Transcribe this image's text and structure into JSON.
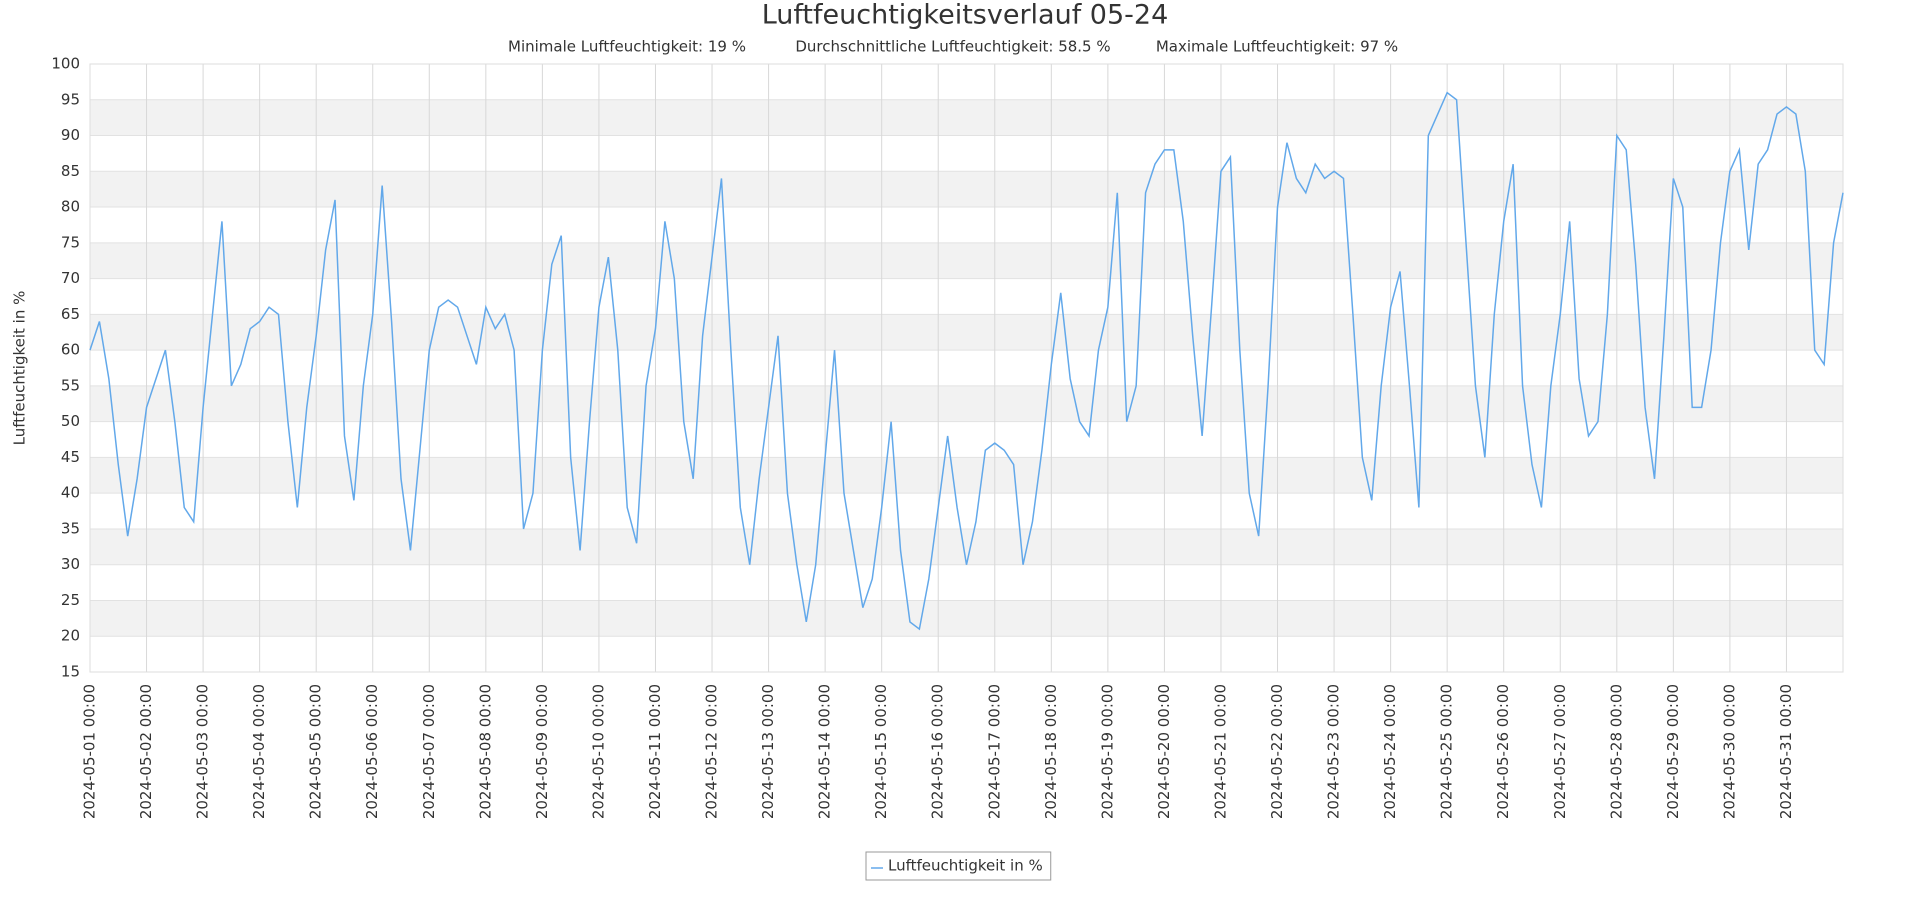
{
  "chart_data": {
    "type": "line",
    "title": "Luftfeuchtigkeitsverlauf 05-24",
    "annotations": [
      "Minimale Luftfeuchtigkeit: 19 %",
      "Durchschnittliche Luftfeuchtigkeit: 58.5 %",
      "Maximale Luftfeuchtigkeit: 97 %"
    ],
    "y_label": "Luftfeuchtigkeit in %",
    "x": [
      "2024-05-01 00:00",
      "2024-05-01 04:00",
      "2024-05-01 08:00",
      "2024-05-01 12:00",
      "2024-05-01 16:00",
      "2024-05-01 20:00",
      "2024-05-02 00:00",
      "2024-05-02 04:00",
      "2024-05-02 08:00",
      "2024-05-02 12:00",
      "2024-05-02 16:00",
      "2024-05-02 20:00",
      "2024-05-03 00:00",
      "2024-05-03 04:00",
      "2024-05-03 08:00",
      "2024-05-03 12:00",
      "2024-05-03 16:00",
      "2024-05-03 20:00",
      "2024-05-04 00:00",
      "2024-05-04 04:00",
      "2024-05-04 08:00",
      "2024-05-04 12:00",
      "2024-05-04 16:00",
      "2024-05-04 20:00",
      "2024-05-05 00:00",
      "2024-05-05 04:00",
      "2024-05-05 08:00",
      "2024-05-05 12:00",
      "2024-05-05 16:00",
      "2024-05-05 20:00",
      "2024-05-06 00:00",
      "2024-05-06 04:00",
      "2024-05-06 08:00",
      "2024-05-06 12:00",
      "2024-05-06 16:00",
      "2024-05-06 20:00",
      "2024-05-07 00:00",
      "2024-05-07 04:00",
      "2024-05-07 08:00",
      "2024-05-07 12:00",
      "2024-05-07 16:00",
      "2024-05-07 20:00",
      "2024-05-08 00:00",
      "2024-05-08 04:00",
      "2024-05-08 08:00",
      "2024-05-08 12:00",
      "2024-05-08 16:00",
      "2024-05-08 20:00",
      "2024-05-09 00:00",
      "2024-05-09 04:00",
      "2024-05-09 08:00",
      "2024-05-09 12:00",
      "2024-05-09 16:00",
      "2024-05-09 20:00",
      "2024-05-10 00:00",
      "2024-05-10 04:00",
      "2024-05-10 08:00",
      "2024-05-10 12:00",
      "2024-05-10 16:00",
      "2024-05-10 20:00",
      "2024-05-11 00:00",
      "2024-05-11 04:00",
      "2024-05-11 08:00",
      "2024-05-11 12:00",
      "2024-05-11 16:00",
      "2024-05-11 20:00",
      "2024-05-12 00:00",
      "2024-05-12 04:00",
      "2024-05-12 08:00",
      "2024-05-12 12:00",
      "2024-05-12 16:00",
      "2024-05-12 20:00",
      "2024-05-13 00:00",
      "2024-05-13 04:00",
      "2024-05-13 08:00",
      "2024-05-13 12:00",
      "2024-05-13 16:00",
      "2024-05-13 20:00",
      "2024-05-14 00:00",
      "2024-05-14 04:00",
      "2024-05-14 08:00",
      "2024-05-14 12:00",
      "2024-05-14 16:00",
      "2024-05-14 20:00",
      "2024-05-15 00:00",
      "2024-05-15 04:00",
      "2024-05-15 08:00",
      "2024-05-15 12:00",
      "2024-05-15 16:00",
      "2024-05-15 20:00",
      "2024-05-16 00:00",
      "2024-05-16 04:00",
      "2024-05-16 08:00",
      "2024-05-16 12:00",
      "2024-05-16 16:00",
      "2024-05-16 20:00",
      "2024-05-17 00:00",
      "2024-05-17 04:00",
      "2024-05-17 08:00",
      "2024-05-17 12:00",
      "2024-05-17 16:00",
      "2024-05-17 20:00",
      "2024-05-18 00:00",
      "2024-05-18 04:00",
      "2024-05-18 08:00",
      "2024-05-18 12:00",
      "2024-05-18 16:00",
      "2024-05-18 20:00",
      "2024-05-19 00:00",
      "2024-05-19 04:00",
      "2024-05-19 08:00",
      "2024-05-19 12:00",
      "2024-05-19 16:00",
      "2024-05-19 20:00",
      "2024-05-20 00:00",
      "2024-05-20 04:00",
      "2024-05-20 08:00",
      "2024-05-20 12:00",
      "2024-05-20 16:00",
      "2024-05-20 20:00",
      "2024-05-21 00:00",
      "2024-05-21 04:00",
      "2024-05-21 08:00",
      "2024-05-21 12:00",
      "2024-05-21 16:00",
      "2024-05-21 20:00",
      "2024-05-22 00:00",
      "2024-05-22 04:00",
      "2024-05-22 08:00",
      "2024-05-22 12:00",
      "2024-05-22 16:00",
      "2024-05-22 20:00",
      "2024-05-23 00:00",
      "2024-05-23 04:00",
      "2024-05-23 08:00",
      "2024-05-23 12:00",
      "2024-05-23 16:00",
      "2024-05-23 20:00",
      "2024-05-24 00:00",
      "2024-05-24 04:00",
      "2024-05-24 08:00",
      "2024-05-24 12:00",
      "2024-05-24 16:00",
      "2024-05-24 20:00",
      "2024-05-25 00:00",
      "2024-05-25 04:00",
      "2024-05-25 08:00",
      "2024-05-25 12:00",
      "2024-05-25 16:00",
      "2024-05-25 20:00",
      "2024-05-26 00:00",
      "2024-05-26 04:00",
      "2024-05-26 08:00",
      "2024-05-26 12:00",
      "2024-05-26 16:00",
      "2024-05-26 20:00",
      "2024-05-27 00:00",
      "2024-05-27 04:00",
      "2024-05-27 08:00",
      "2024-05-27 12:00",
      "2024-05-27 16:00",
      "2024-05-27 20:00",
      "2024-05-28 00:00",
      "2024-05-28 04:00",
      "2024-05-28 08:00",
      "2024-05-28 12:00",
      "2024-05-28 16:00",
      "2024-05-28 20:00",
      "2024-05-29 00:00",
      "2024-05-29 04:00",
      "2024-05-29 08:00",
      "2024-05-29 12:00",
      "2024-05-29 16:00",
      "2024-05-29 20:00",
      "2024-05-30 00:00",
      "2024-05-30 04:00",
      "2024-05-30 08:00",
      "2024-05-30 12:00",
      "2024-05-30 16:00",
      "2024-05-30 20:00",
      "2024-05-31 00:00",
      "2024-05-31 04:00",
      "2024-05-31 08:00",
      "2024-05-31 12:00",
      "2024-05-31 16:00",
      "2024-05-31 20:00",
      "2024-06-01 00:00"
    ],
    "series": [
      {
        "name": "Luftfeuchtigkeit in %",
        "color": "#62a8ea",
        "values": [
          60,
          64,
          56,
          44,
          34,
          42,
          52,
          56,
          60,
          50,
          38,
          36,
          52,
          65,
          78,
          55,
          58,
          63,
          64,
          66,
          65,
          50,
          38,
          52,
          62,
          74,
          81,
          48,
          39,
          55,
          65,
          83,
          64,
          42,
          32,
          46,
          60,
          66,
          67,
          66,
          62,
          58,
          66,
          63,
          65,
          60,
          35,
          40,
          60,
          72,
          76,
          45,
          32,
          50,
          66,
          73,
          60,
          38,
          33,
          55,
          63,
          78,
          70,
          50,
          42,
          62,
          73,
          84,
          60,
          38,
          30,
          42,
          52,
          62,
          40,
          30,
          22,
          30,
          45,
          60,
          40,
          32,
          24,
          28,
          38,
          50,
          32,
          22,
          21,
          28,
          38,
          48,
          38,
          30,
          36,
          46,
          47,
          46,
          44,
          30,
          36,
          46,
          58,
          68,
          56,
          50,
          48,
          60,
          66,
          82,
          50,
          55,
          82,
          86,
          88,
          88,
          78,
          62,
          48,
          66,
          85,
          87,
          60,
          40,
          34,
          55,
          80,
          89,
          84,
          82,
          86,
          84,
          85,
          84,
          65,
          45,
          39,
          55,
          66,
          71,
          55,
          38,
          90,
          93,
          96,
          95,
          75,
          55,
          45,
          65,
          78,
          86,
          55,
          44,
          38,
          55,
          65,
          78,
          56,
          48,
          50,
          65,
          90,
          88,
          72,
          52,
          42,
          62,
          84,
          80,
          52,
          52,
          60,
          75,
          85,
          88,
          74,
          86,
          88,
          93,
          94,
          93,
          85,
          60,
          58,
          75,
          82
        ]
      }
    ],
    "xlim": [
      "2024-05-01 00:00",
      "2024-06-01 00:00"
    ],
    "xticks": [
      "2024-05-01 00:00",
      "2024-05-02 00:00",
      "2024-05-03 00:00",
      "2024-05-04 00:00",
      "2024-05-05 00:00",
      "2024-05-06 00:00",
      "2024-05-07 00:00",
      "2024-05-08 00:00",
      "2024-05-09 00:00",
      "2024-05-10 00:00",
      "2024-05-11 00:00",
      "2024-05-12 00:00",
      "2024-05-13 00:00",
      "2024-05-14 00:00",
      "2024-05-15 00:00",
      "2024-05-16 00:00",
      "2024-05-17 00:00",
      "2024-05-18 00:00",
      "2024-05-19 00:00",
      "2024-05-20 00:00",
      "2024-05-21 00:00",
      "2024-05-22 00:00",
      "2024-05-23 00:00",
      "2024-05-24 00:00",
      "2024-05-25 00:00",
      "2024-05-26 00:00",
      "2024-05-27 00:00",
      "2024-05-28 00:00",
      "2024-05-29 00:00",
      "2024-05-30 00:00",
      "2024-05-31 00:00"
    ],
    "ylim": [
      15,
      100
    ],
    "yticks": [
      15,
      20,
      25,
      30,
      35,
      40,
      45,
      50,
      55,
      60,
      65,
      70,
      75,
      80,
      85,
      90,
      95,
      100
    ],
    "grid": true
  }
}
